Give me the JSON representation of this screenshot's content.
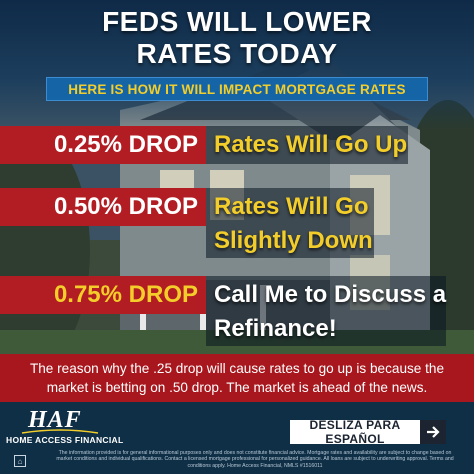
{
  "headline": {
    "line1": "FEDS WILL LOWER",
    "line2": "RATES TODAY"
  },
  "subheadline": "HERE IS HOW IT WILL IMPACT MORTGAGE RATES",
  "drops": [
    {
      "label": "0.25% DROP",
      "impact_line1": "Rates Will Go Up",
      "impact_line2": ""
    },
    {
      "label": "0.50% DROP",
      "impact_line1": "Rates Will Go",
      "impact_line2": "Slightly Down"
    },
    {
      "label": "0.75% DROP",
      "impact_line1": "Call Me to Discuss a",
      "impact_line2": "Refinance!"
    }
  ],
  "explanation": {
    "line1": "The reason why the .25 drop will cause rates to go up is because the",
    "line2": "market is betting on .50 drop. The market is ahead of the news."
  },
  "footer": {
    "logo_mark": "HAF",
    "company_name": "HOME ACCESS FINANCIAL",
    "cta_label": "DESLIZA PARA ESPAÑOL",
    "cta_icon": "arrow-right-icon",
    "housing_icon": "equal-housing-icon",
    "disclaimer_line1": "The information provided is for general informational purposes only and does not constitute financial advice. Mortgage rates and availability are subject to change based on",
    "disclaimer_line2": "market conditions and individual qualifications. Contact a licensed mortgage professional for personalized guidance. All loans are subject to underwriting approval. Terms and",
    "disclaimer_line3": "conditions apply. Home Access Financial, NMLS #1516011"
  },
  "colors": {
    "accent_yellow": "#f3ce2a",
    "band_red": "#b11d23",
    "navy": "#0f2f46",
    "sub_band_blue": "#1565a6"
  }
}
